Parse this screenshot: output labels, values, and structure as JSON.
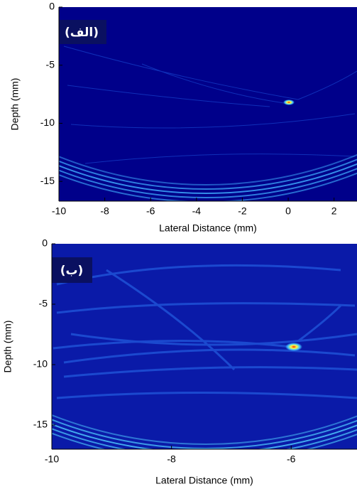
{
  "chart_data": [
    {
      "type": "image",
      "label": "(الف)",
      "xlabel": "Lateral Distance (mm)",
      "ylabel": "Depth (mm)",
      "xlim": [
        -10,
        3
      ],
      "ylim": [
        -16.7,
        0
      ],
      "xticks": [
        -10,
        -8,
        -6,
        -4,
        -2,
        0,
        2
      ],
      "yticks": [
        0,
        -5,
        -10,
        -15
      ]
    },
    {
      "type": "image",
      "label": "(ب)",
      "xlabel": "Lateral Distance (mm)",
      "ylabel": "Depth (mm)",
      "xlim": [
        -10,
        -4.9
      ],
      "ylim": [
        -17,
        0
      ],
      "xticks": [
        -10,
        -8,
        -6
      ],
      "yticks": [
        0,
        -5,
        -10,
        -15
      ]
    }
  ]
}
